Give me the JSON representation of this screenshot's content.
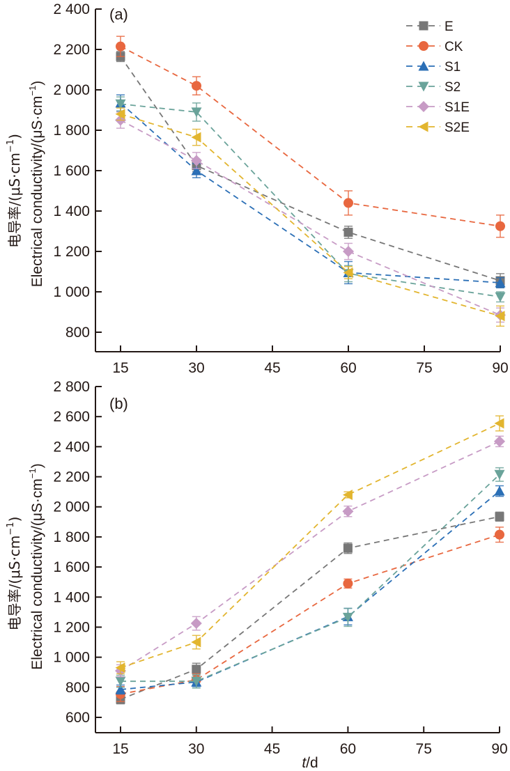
{
  "chart_data": [
    {
      "type": "line",
      "panel_label": "(a)",
      "xlabel": "",
      "ylabel_cn": "电导率/(μS·cm",
      "ylabel_en": "Electrical conductivity/(μS·cm",
      "ylabel_sup": "−1",
      "ylabel_close": ")",
      "x": [
        15,
        30,
        60,
        90
      ],
      "xticks": [
        15,
        30,
        45,
        60,
        75,
        90
      ],
      "xtick_labels": [
        "15",
        "30",
        "45",
        "60",
        "75",
        "90"
      ],
      "xlim": [
        10,
        90
      ],
      "ylim": [
        700,
        2400
      ],
      "yticks": [
        800,
        1000,
        1200,
        1400,
        1600,
        1800,
        2000,
        2200,
        2400
      ],
      "ytick_labels": [
        "800",
        "1 000",
        "1 200",
        "1 400",
        "1 600",
        "1 800",
        "2 000",
        "2 200",
        "2 400"
      ],
      "grid": false,
      "legend_position": "top-right",
      "series": [
        {
          "name": "E",
          "marker": "square",
          "color": "#777777",
          "values": [
            2165,
            1625,
            1295,
            1055
          ],
          "errors": [
            25,
            30,
            30,
            35
          ]
        },
        {
          "name": "CK",
          "marker": "circle",
          "color": "#E8673F",
          "values": [
            2215,
            2020,
            1440,
            1325
          ],
          "errors": [
            50,
            45,
            60,
            55
          ]
        },
        {
          "name": "S1",
          "marker": "triangle-up",
          "color": "#2B6FB6",
          "values": [
            1935,
            1600,
            1095,
            1045
          ],
          "errors": [
            40,
            35,
            55,
            25
          ]
        },
        {
          "name": "S2",
          "marker": "triangle-down",
          "color": "#6AA39A",
          "values": [
            1930,
            1890,
            1090,
            975
          ],
          "errors": [
            35,
            45,
            40,
            25
          ]
        },
        {
          "name": "S1E",
          "marker": "diamond",
          "color": "#C79BC5",
          "values": [
            1850,
            1650,
            1200,
            885
          ],
          "errors": [
            40,
            40,
            40,
            35
          ]
        },
        {
          "name": "S2E",
          "marker": "triangle-left",
          "color": "#E2B52F",
          "values": [
            1880,
            1765,
            1095,
            880
          ],
          "errors": [
            30,
            40,
            30,
            50
          ]
        }
      ]
    },
    {
      "type": "line",
      "panel_label": "(b)",
      "xlabel_italic": "t",
      "xlabel_rest": "/d",
      "ylabel_cn": "电导率/(μS·cm",
      "ylabel_en": "Electrical conductivity/(μS·cm",
      "ylabel_sup": "−1",
      "ylabel_close": ")",
      "x": [
        15,
        30,
        60,
        90
      ],
      "xticks": [
        15,
        30,
        45,
        60,
        75,
        90
      ],
      "xtick_labels": [
        "15",
        "30",
        "45",
        "60",
        "75",
        "90"
      ],
      "xlim": [
        10,
        90
      ],
      "ylim": [
        500,
        2800
      ],
      "yticks": [
        600,
        800,
        1000,
        1200,
        1400,
        1600,
        1800,
        2000,
        2200,
        2400,
        2600,
        2800
      ],
      "ytick_labels": [
        "600",
        "800",
        "1 000",
        "1 200",
        "1 400",
        "1 600",
        "1 800",
        "2 000",
        "2 200",
        "2 400",
        "2 600",
        "2 800"
      ],
      "grid": false,
      "series": [
        {
          "name": "E",
          "marker": "square",
          "color": "#777777",
          "values": [
            720,
            920,
            1725,
            1935
          ],
          "errors": [
            30,
            40,
            35,
            30
          ]
        },
        {
          "name": "CK",
          "marker": "circle",
          "color": "#E8673F",
          "values": [
            755,
            850,
            1490,
            1815
          ],
          "errors": [
            50,
            40,
            30,
            50
          ]
        },
        {
          "name": "S1",
          "marker": "triangle-up",
          "color": "#2B6FB6",
          "values": [
            785,
            835,
            1270,
            2105
          ],
          "errors": [
            30,
            30,
            55,
            35
          ]
        },
        {
          "name": "S2",
          "marker": "triangle-down",
          "color": "#6AA39A",
          "values": [
            840,
            840,
            1265,
            2215
          ],
          "errors": [
            40,
            45,
            60,
            45
          ]
        },
        {
          "name": "S1E",
          "marker": "diamond",
          "color": "#C79BC5",
          "values": [
            910,
            1225,
            1970,
            2435
          ],
          "errors": [
            40,
            45,
            35,
            35
          ]
        },
        {
          "name": "S2E",
          "marker": "triangle-left",
          "color": "#E2B52F",
          "values": [
            930,
            1100,
            2080,
            2555
          ],
          "errors": [
            40,
            45,
            20,
            50
          ]
        }
      ]
    }
  ]
}
